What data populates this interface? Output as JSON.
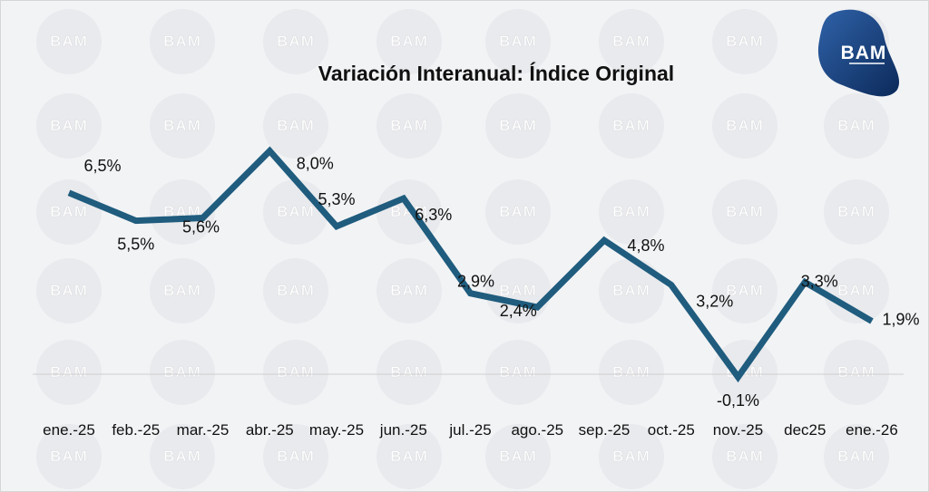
{
  "chart_data": {
    "type": "line",
    "title": "Variación Interanual: Índice Original",
    "categories": [
      "ene.-25",
      "feb.-25",
      "mar.-25",
      "abr.-25",
      "may.-25",
      "jun.-25",
      "jul.-25",
      "ago.-25",
      "sep.-25",
      "oct.-25",
      "nov.-25",
      "dec25",
      "ene.-26"
    ],
    "series": [
      {
        "name": "Variación Interanual",
        "values": [
          6.5,
          5.5,
          5.6,
          8.0,
          5.3,
          6.3,
          2.9,
          2.4,
          4.8,
          3.2,
          -0.1,
          3.3,
          1.9
        ]
      }
    ],
    "data_labels": [
      "6,5%",
      "5,5%",
      "5,6%",
      "8,0%",
      "5,3%",
      "6,3%",
      "2,9%",
      "2,4%",
      "4,8%",
      "3,2%",
      "-0,1%",
      "3,3%",
      "1,9%"
    ],
    "xlabel": "",
    "ylabel": "",
    "ylim": [
      0,
      9
    ],
    "grid": false,
    "line_color": "#1f5c7e"
  },
  "logo": {
    "text": "BAM",
    "colors": {
      "dark": "#0c2a5a",
      "light": "#2f62a8"
    }
  },
  "watermark": {
    "text": "BAM"
  },
  "colors": {
    "background": "#f2f3f5",
    "axis": "#cfcfcf"
  }
}
